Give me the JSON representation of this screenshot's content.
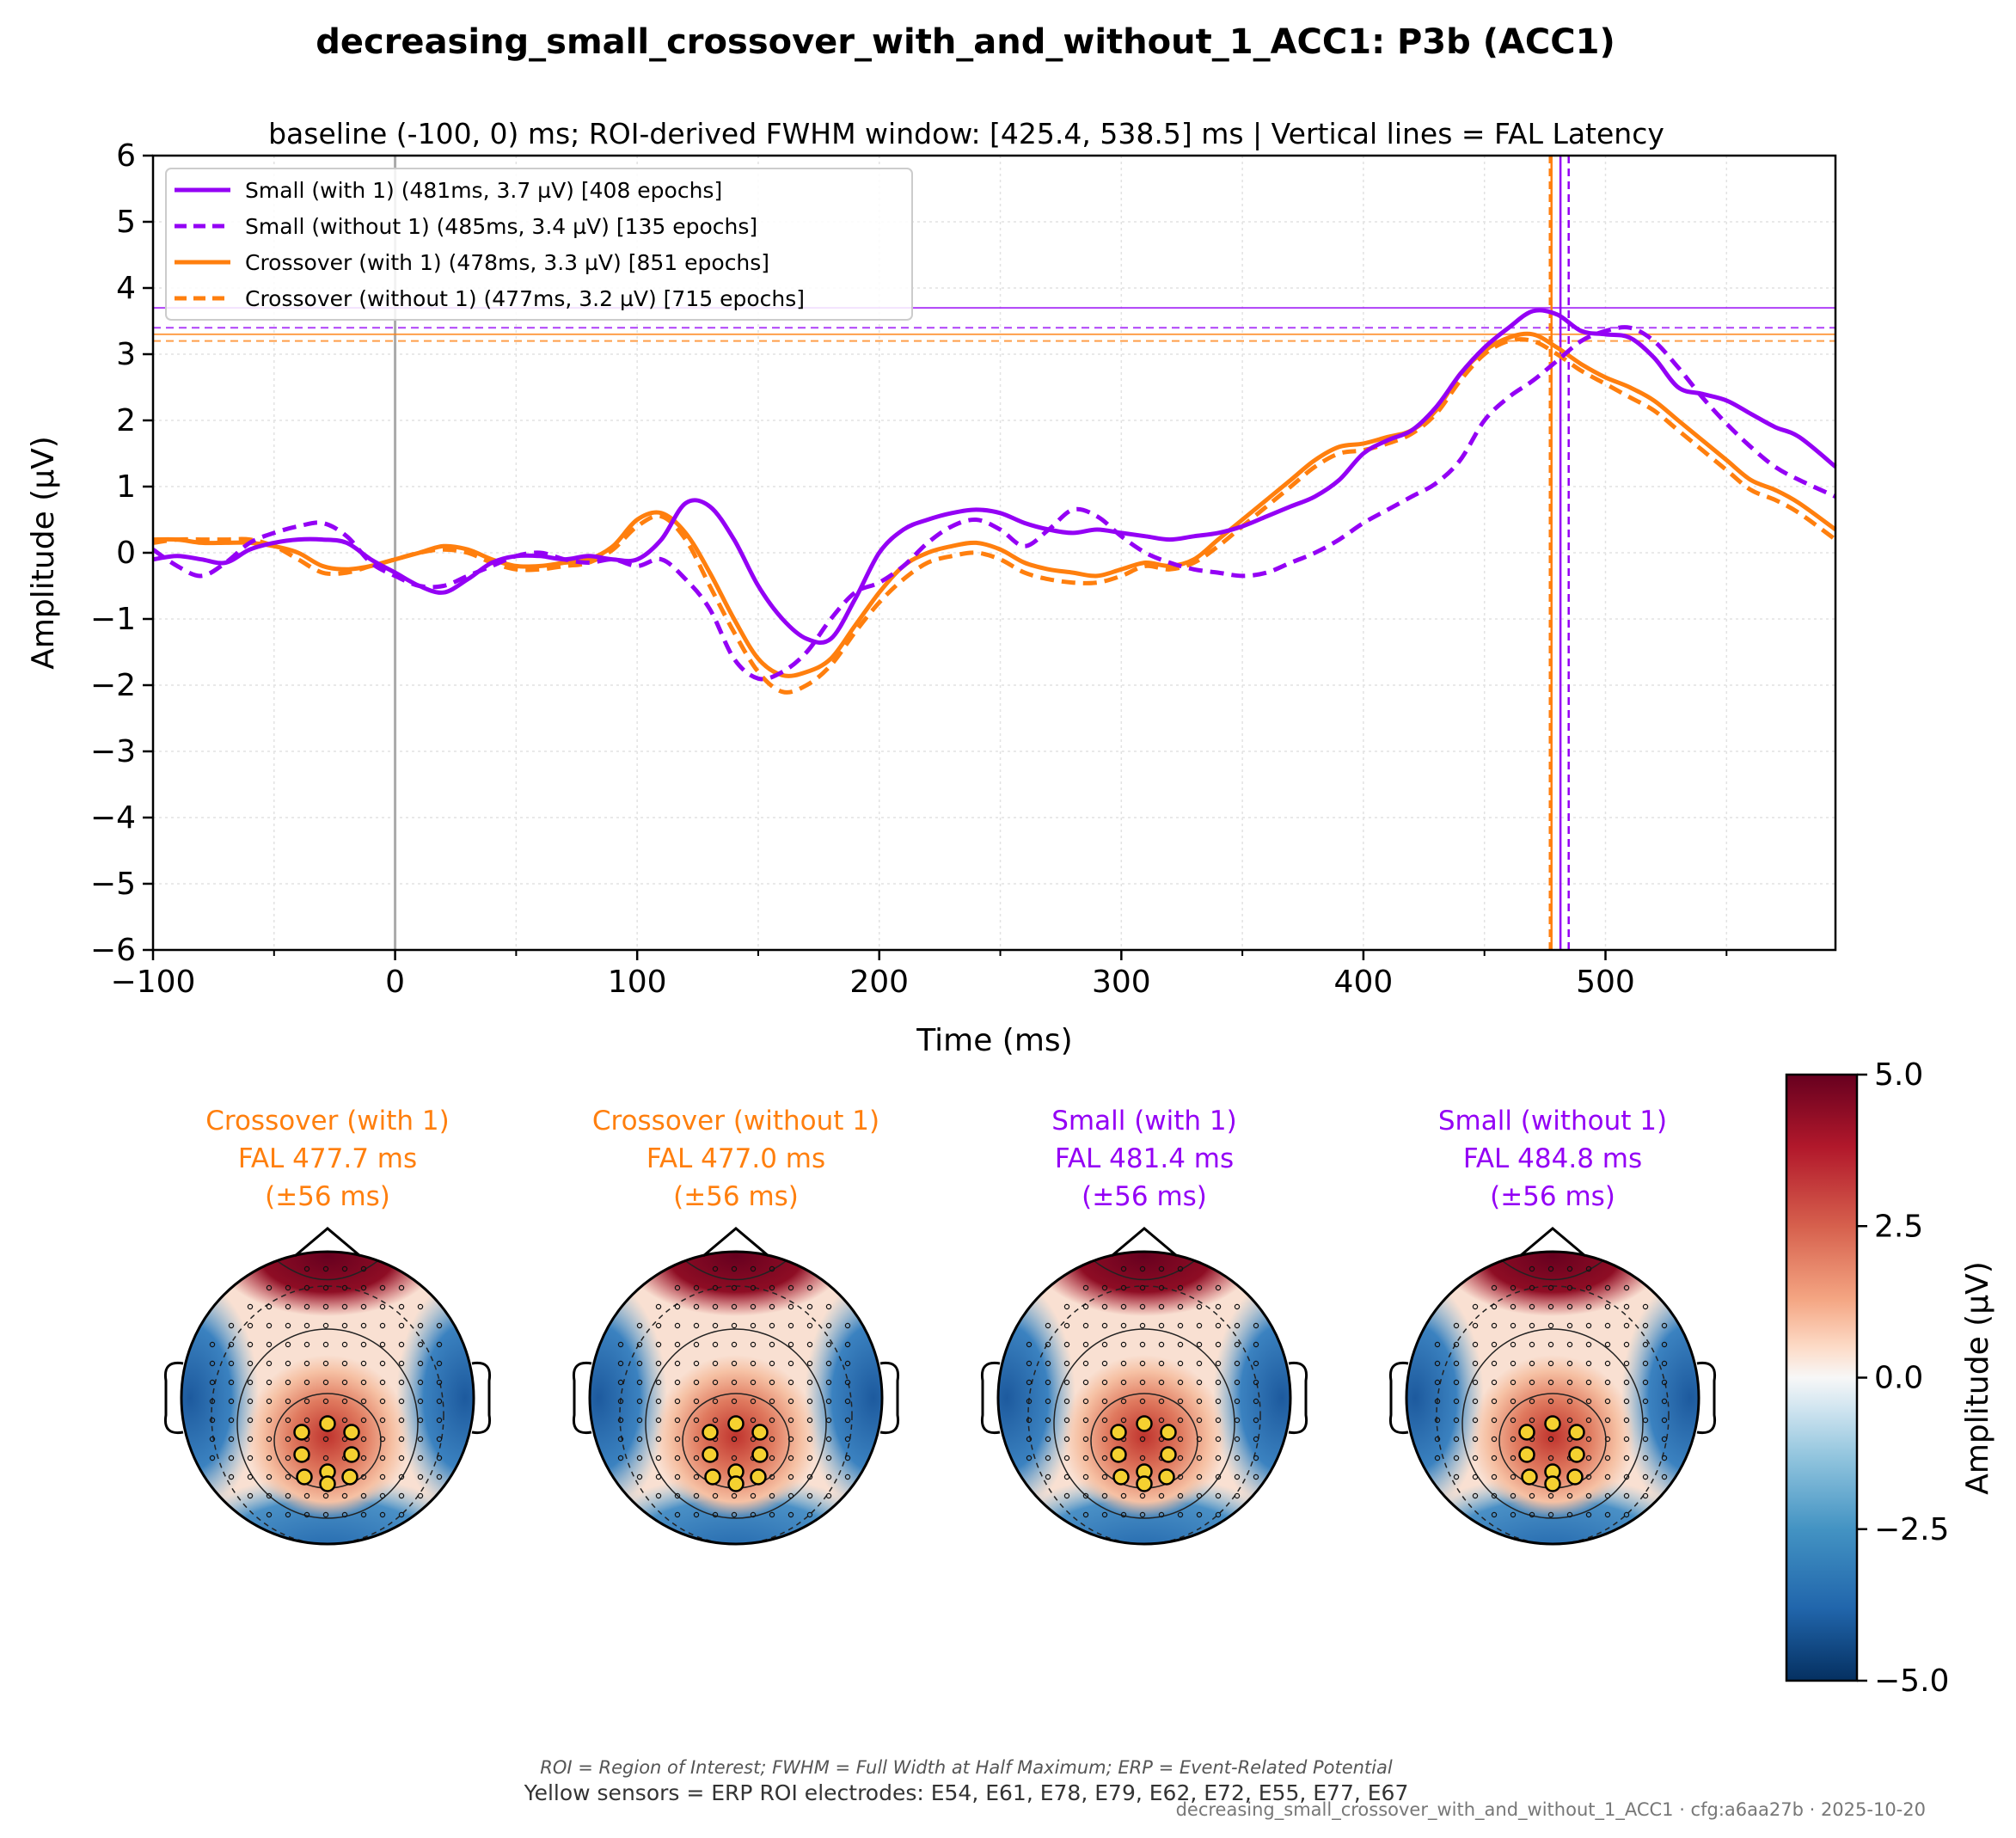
{
  "title": "decreasing_small_crossover_with_and_without_1_ACC1: P3b (ACC1)",
  "subtitle": "baseline (-100, 0) ms; ROI-derived FWHM window: [425.4, 538.5] ms | Vertical lines = FAL Latency",
  "colors": {
    "small": "#9400f5",
    "crossover": "#ff7f0e",
    "zero_line": "#aaaaaa",
    "grid": "#e2e2e2"
  },
  "chart_data": [
    {
      "type": "line",
      "xlabel": "Time (ms)",
      "ylabel": "Amplitude (µV)",
      "xlim": [
        -100,
        595
      ],
      "ylim": [
        -6,
        6
      ],
      "xticks": [
        -100,
        0,
        100,
        200,
        300,
        400,
        500
      ],
      "xtick_labels": [
        "−100",
        "0",
        "100",
        "200",
        "300",
        "400",
        "500"
      ],
      "yticks": [
        -6,
        -5,
        -4,
        -3,
        -2,
        -1,
        0,
        1,
        2,
        3,
        4,
        5,
        6
      ],
      "ytick_labels": [
        "−6",
        "−5",
        "−4",
        "−3",
        "−2",
        "−1",
        "0",
        "1",
        "2",
        "3",
        "4",
        "5",
        "6"
      ],
      "grid": true,
      "legend_position": "top-left",
      "x": [
        -100,
        -90,
        -80,
        -70,
        -60,
        -50,
        -40,
        -30,
        -20,
        -10,
        0,
        10,
        20,
        30,
        40,
        50,
        60,
        70,
        80,
        90,
        100,
        110,
        120,
        130,
        140,
        150,
        160,
        170,
        180,
        190,
        200,
        210,
        220,
        230,
        240,
        250,
        260,
        270,
        280,
        290,
        300,
        310,
        320,
        330,
        340,
        350,
        360,
        370,
        380,
        390,
        400,
        410,
        420,
        430,
        440,
        450,
        460,
        470,
        480,
        490,
        500,
        510,
        520,
        530,
        540,
        550,
        560,
        570,
        580,
        595
      ],
      "series": [
        {
          "name": "Small (with 1) (481ms, 3.7 µV) [408 epochs]",
          "color": "#9400f5",
          "dash": "solid",
          "fal_ms": 481.4,
          "peak_uv": 3.7,
          "values": [
            -0.1,
            -0.05,
            -0.1,
            -0.15,
            0.05,
            0.15,
            0.2,
            0.2,
            0.15,
            -0.1,
            -0.3,
            -0.5,
            -0.6,
            -0.4,
            -0.15,
            -0.05,
            -0.05,
            -0.1,
            -0.05,
            -0.1,
            -0.1,
            0.2,
            0.75,
            0.7,
            0.2,
            -0.5,
            -1.0,
            -1.3,
            -1.3,
            -0.7,
            0.0,
            0.35,
            0.5,
            0.6,
            0.65,
            0.6,
            0.45,
            0.35,
            0.3,
            0.35,
            0.3,
            0.25,
            0.2,
            0.25,
            0.3,
            0.4,
            0.55,
            0.7,
            0.85,
            1.1,
            1.5,
            1.7,
            1.85,
            2.2,
            2.7,
            3.1,
            3.4,
            3.65,
            3.6,
            3.35,
            3.3,
            3.25,
            2.95,
            2.5,
            2.4,
            2.3,
            2.1,
            1.9,
            1.75,
            1.3
          ]
        },
        {
          "name": "Small (without 1) (485ms, 3.4 µV) [135 epochs]",
          "color": "#9400f5",
          "dash": "dashed",
          "fal_ms": 484.8,
          "peak_uv": 3.4,
          "values": [
            0.05,
            -0.2,
            -0.35,
            -0.15,
            0.15,
            0.3,
            0.4,
            0.45,
            0.25,
            -0.15,
            -0.35,
            -0.5,
            -0.5,
            -0.35,
            -0.2,
            -0.05,
            0.0,
            -0.1,
            -0.15,
            -0.1,
            -0.2,
            -0.1,
            -0.4,
            -0.85,
            -1.6,
            -1.9,
            -1.8,
            -1.5,
            -1.0,
            -0.6,
            -0.45,
            -0.2,
            0.15,
            0.4,
            0.5,
            0.35,
            0.1,
            0.35,
            0.65,
            0.55,
            0.25,
            0.0,
            -0.15,
            -0.25,
            -0.3,
            -0.35,
            -0.3,
            -0.15,
            0.0,
            0.2,
            0.45,
            0.65,
            0.85,
            1.05,
            1.4,
            2.0,
            2.35,
            2.6,
            2.9,
            3.2,
            3.35,
            3.4,
            3.2,
            2.8,
            2.35,
            1.95,
            1.6,
            1.3,
            1.1,
            0.85
          ]
        },
        {
          "name": "Crossover (with 1) (478ms, 3.3 µV) [851 epochs]",
          "color": "#ff7f0e",
          "dash": "solid",
          "fal_ms": 477.7,
          "peak_uv": 3.3,
          "values": [
            0.2,
            0.2,
            0.15,
            0.15,
            0.15,
            0.1,
            0.0,
            -0.2,
            -0.25,
            -0.2,
            -0.1,
            0.0,
            0.1,
            0.05,
            -0.1,
            -0.2,
            -0.2,
            -0.15,
            -0.1,
            0.1,
            0.5,
            0.6,
            0.3,
            -0.3,
            -1.0,
            -1.6,
            -1.85,
            -1.8,
            -1.6,
            -1.1,
            -0.6,
            -0.2,
            0.0,
            0.1,
            0.15,
            0.05,
            -0.15,
            -0.25,
            -0.3,
            -0.35,
            -0.25,
            -0.15,
            -0.2,
            -0.1,
            0.2,
            0.5,
            0.8,
            1.1,
            1.4,
            1.6,
            1.65,
            1.75,
            1.85,
            2.15,
            2.7,
            3.05,
            3.25,
            3.3,
            3.1,
            2.85,
            2.65,
            2.5,
            2.3,
            2.0,
            1.7,
            1.4,
            1.1,
            0.95,
            0.75,
            0.35
          ]
        },
        {
          "name": "Crossover (without 1) (477ms, 3.2 µV) [715 epochs]",
          "color": "#ff7f0e",
          "dash": "dashed",
          "fal_ms": 477.0,
          "peak_uv": 3.2,
          "values": [
            0.15,
            0.2,
            0.2,
            0.2,
            0.2,
            0.1,
            -0.1,
            -0.3,
            -0.3,
            -0.2,
            -0.1,
            0.0,
            0.05,
            0.0,
            -0.15,
            -0.25,
            -0.25,
            -0.2,
            -0.15,
            0.05,
            0.4,
            0.55,
            0.2,
            -0.5,
            -1.2,
            -1.8,
            -2.1,
            -2.0,
            -1.7,
            -1.2,
            -0.75,
            -0.4,
            -0.15,
            -0.05,
            0.0,
            -0.1,
            -0.3,
            -0.4,
            -0.45,
            -0.45,
            -0.35,
            -0.2,
            -0.25,
            -0.15,
            0.1,
            0.4,
            0.7,
            1.0,
            1.3,
            1.5,
            1.55,
            1.65,
            1.8,
            2.1,
            2.6,
            3.0,
            3.2,
            3.2,
            3.0,
            2.75,
            2.55,
            2.35,
            2.15,
            1.85,
            1.55,
            1.25,
            0.95,
            0.8,
            0.6,
            0.2
          ]
        }
      ]
    },
    {
      "type": "heatmap",
      "colorbar_label": "Amplitude (µV)",
      "colorbar_range": [
        -5.0,
        5.0
      ],
      "colorbar_ticks": [
        5.0,
        2.5,
        0.0,
        -2.5,
        -5.0
      ],
      "colorbar_tick_labels": [
        "5.0",
        "2.5",
        "0.0",
        "−2.5",
        "−5.0"
      ],
      "colormap": "RdBu_r"
    }
  ],
  "topomaps": [
    {
      "title": "Crossover (with 1)",
      "line2": "FAL 477.7 ms",
      "line3": "(±56 ms)",
      "color": "#ff7f0e"
    },
    {
      "title": "Crossover (without 1)",
      "line2": "FAL 477.0 ms",
      "line3": "(±56 ms)",
      "color": "#ff7f0e"
    },
    {
      "title": "Small (with 1)",
      "line2": "FAL 481.4 ms",
      "line3": "(±56 ms)",
      "color": "#9400f5"
    },
    {
      "title": "Small (without 1)",
      "line2": "FAL 484.8 ms",
      "line3": "(±56 ms)",
      "color": "#9400f5"
    }
  ],
  "footer": {
    "note1": "ROI = Region of Interest; FWHM = Full Width at Half Maximum; ERP = Event-Related Potential",
    "note2": "Yellow sensors = ERP ROI electrodes: E54, E61, E78, E79, E62, E72, E55, E77, E67",
    "meta": "decreasing_small_crossover_with_and_without_1_ACC1 · cfg:a6aa27b · 2025-10-20"
  }
}
